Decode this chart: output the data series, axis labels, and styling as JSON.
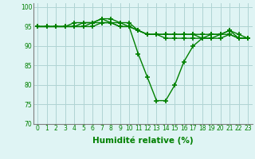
{
  "series": [
    [
      95,
      95,
      95,
      95,
      95,
      96,
      96,
      97,
      96,
      96,
      95,
      88,
      82,
      76,
      76,
      80,
      86,
      90,
      92,
      93,
      93,
      94,
      92,
      92
    ],
    [
      95,
      95,
      95,
      95,
      96,
      96,
      96,
      97,
      97,
      96,
      96,
      94,
      93,
      93,
      93,
      93,
      93,
      93,
      93,
      93,
      93,
      94,
      93,
      92
    ],
    [
      95,
      95,
      95,
      95,
      95,
      95,
      96,
      96,
      96,
      95,
      95,
      94,
      93,
      93,
      93,
      93,
      93,
      93,
      92,
      92,
      93,
      93,
      92,
      92
    ],
    [
      95,
      95,
      95,
      95,
      95,
      95,
      95,
      96,
      96,
      95,
      95,
      94,
      93,
      93,
      92,
      92,
      92,
      92,
      92,
      92,
      92,
      93,
      92,
      92
    ]
  ],
  "x": [
    0,
    1,
    2,
    3,
    4,
    5,
    6,
    7,
    8,
    9,
    10,
    11,
    12,
    13,
    14,
    15,
    16,
    17,
    18,
    19,
    20,
    21,
    22,
    23
  ],
  "line_color": "#008000",
  "marker": "+",
  "marker_size": 4,
  "marker_lw": 1.2,
  "xlim": [
    -0.5,
    23.5
  ],
  "ylim": [
    70,
    101
  ],
  "yticks": [
    70,
    75,
    80,
    85,
    90,
    95,
    100
  ],
  "xticks": [
    0,
    1,
    2,
    3,
    4,
    5,
    6,
    7,
    8,
    9,
    10,
    11,
    12,
    13,
    14,
    15,
    16,
    17,
    18,
    19,
    20,
    21,
    22,
    23
  ],
  "xlabel": "Humidité relative (%)",
  "bg_color": "#dff4f4",
  "grid_color": "#b0d4d4",
  "tick_color": "#008000",
  "label_color": "#008000",
  "tick_fontsize": 5.5,
  "xlabel_fontsize": 7.5,
  "linewidth": 1.0
}
